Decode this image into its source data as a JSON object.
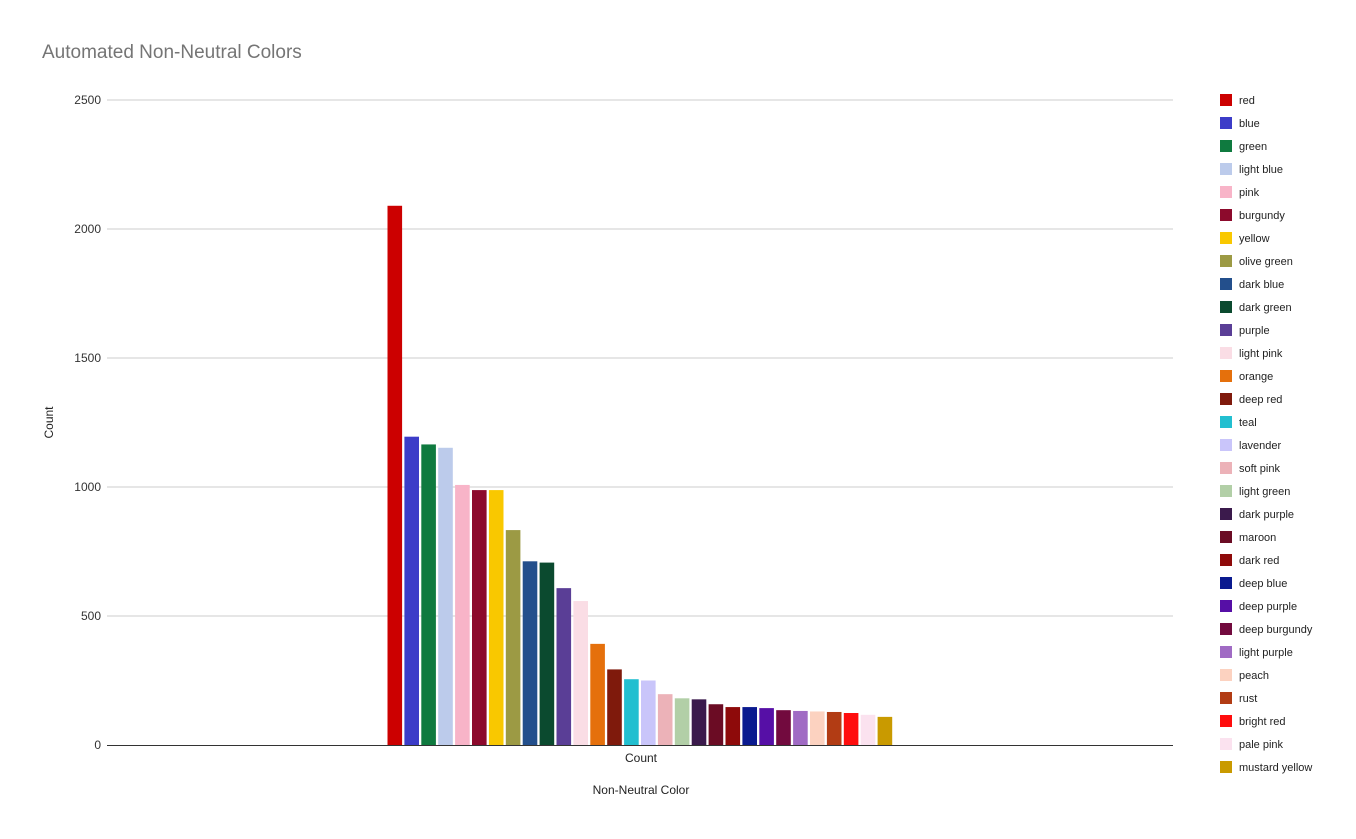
{
  "chart_data": {
    "type": "bar",
    "title": "Automated Non-Neutral Colors",
    "xlabel": "Non-Neutral Color",
    "ylabel": "Count",
    "categories": [
      "Count"
    ],
    "ylim": [
      0,
      2500
    ],
    "yticks": [
      "0",
      "500",
      "1000",
      "1500",
      "2000",
      "2500"
    ],
    "grid": true,
    "legend_position": "right",
    "series": [
      {
        "name": "red",
        "color": "#cc0000",
        "values": [
          2090
        ]
      },
      {
        "name": "blue",
        "color": "#3c3cc8",
        "values": [
          1195
        ]
      },
      {
        "name": "green",
        "color": "#0f7a3f",
        "values": [
          1165
        ]
      },
      {
        "name": "light blue",
        "color": "#bccbeb",
        "values": [
          1152
        ]
      },
      {
        "name": "pink",
        "color": "#f8b4c8",
        "values": [
          1008
        ]
      },
      {
        "name": "burgundy",
        "color": "#8c0a2c",
        "values": [
          988
        ]
      },
      {
        "name": "yellow",
        "color": "#f9c800",
        "values": [
          988
        ]
      },
      {
        "name": "olive green",
        "color": "#9c9a44",
        "values": [
          833
        ]
      },
      {
        "name": "dark blue",
        "color": "#234f8c",
        "values": [
          712
        ]
      },
      {
        "name": "dark green",
        "color": "#0b4a2f",
        "values": [
          707
        ]
      },
      {
        "name": "purple",
        "color": "#5a3e96",
        "values": [
          608
        ]
      },
      {
        "name": "light pink",
        "color": "#fadde5",
        "values": [
          558
        ]
      },
      {
        "name": "orange",
        "color": "#e5700c",
        "values": [
          392
        ]
      },
      {
        "name": "deep red",
        "color": "#7f1a0c",
        "values": [
          293
        ]
      },
      {
        "name": "teal",
        "color": "#22bfd0",
        "values": [
          255
        ]
      },
      {
        "name": "lavender",
        "color": "#c9c5fa",
        "values": [
          250
        ]
      },
      {
        "name": "soft pink",
        "color": "#ecb2b8",
        "values": [
          197
        ]
      },
      {
        "name": "light green",
        "color": "#b2cfa7",
        "values": [
          181
        ]
      },
      {
        "name": "dark purple",
        "color": "#3b1a4c",
        "values": [
          177
        ]
      },
      {
        "name": "maroon",
        "color": "#6b0c24",
        "values": [
          158
        ]
      },
      {
        "name": "dark red",
        "color": "#8e0a0a",
        "values": [
          147
        ]
      },
      {
        "name": "deep blue",
        "color": "#0a1a8f",
        "values": [
          147
        ]
      },
      {
        "name": "deep purple",
        "color": "#560fa6",
        "values": [
          143
        ]
      },
      {
        "name": "deep burgundy",
        "color": "#720a3e",
        "values": [
          135
        ]
      },
      {
        "name": "light purple",
        "color": "#a06bc4",
        "values": [
          132
        ]
      },
      {
        "name": "peach",
        "color": "#fcd2c0",
        "values": [
          130
        ]
      },
      {
        "name": "rust",
        "color": "#b23c14",
        "values": [
          128
        ]
      },
      {
        "name": "bright red",
        "color": "#ff0d0d",
        "values": [
          124
        ]
      },
      {
        "name": "pale pink",
        "color": "#fbe2ef",
        "values": [
          117
        ]
      },
      {
        "name": "mustard yellow",
        "color": "#c99a00",
        "values": [
          109
        ]
      }
    ]
  }
}
